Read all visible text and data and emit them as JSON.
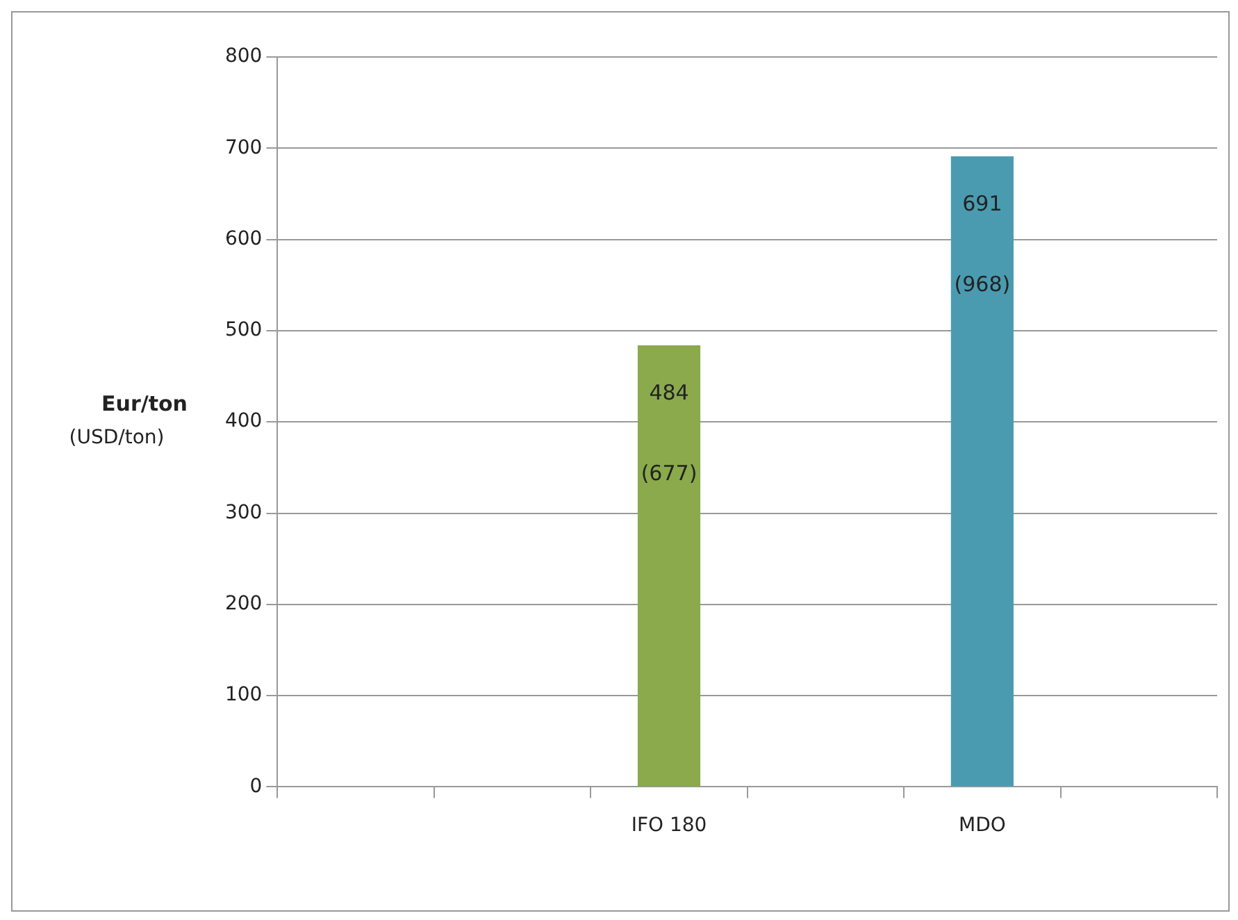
{
  "chart_data": {
    "type": "bar",
    "ylabel": "Eur/ton",
    "annotations": [
      "(USD/ton)"
    ],
    "categories": [
      null,
      null,
      "IFO 180",
      null,
      "MDO",
      null
    ],
    "values": [
      null,
      null,
      484,
      null,
      691,
      null
    ],
    "colors": [
      "#8aaa4c",
      "#8aaa4c",
      "#8aaa4c",
      "#4a9bb0",
      "#4a9bb0",
      "#4a9bb0"
    ],
    "value_labels": [
      null,
      null,
      "484\n(677)",
      null,
      "691\n(968)",
      null
    ],
    "ylim": [
      0,
      800
    ],
    "yticks": [
      0,
      100,
      200,
      300,
      400,
      500,
      600,
      700,
      800
    ],
    "grid": "y",
    "legend": false
  }
}
